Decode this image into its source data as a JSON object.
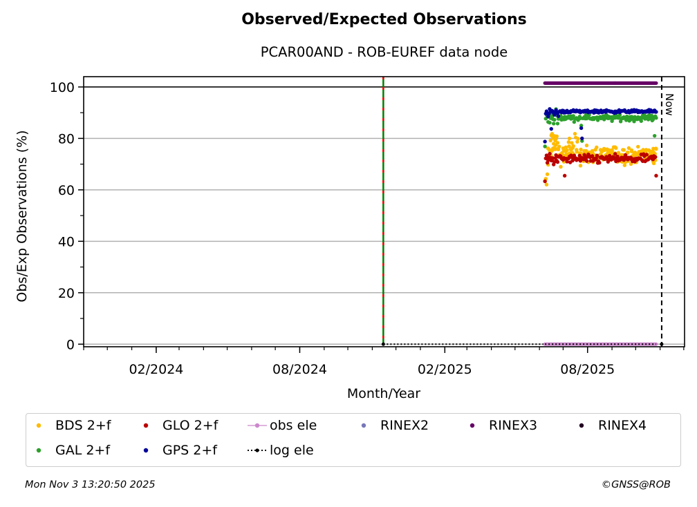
{
  "chart_data": {
    "type": "scatter",
    "title": "Observed/Expected Observations",
    "subtitle": "PCAR00AND - ROB-EUREF data node",
    "xlabel": "Month/Year",
    "ylabel": "Obs/Exp Observations (%)",
    "xlim": [
      "2023-11-01",
      "2025-12-02"
    ],
    "ylim": [
      -1,
      104
    ],
    "x_ticks": [
      {
        "date": "2024-02-01",
        "label": "02/2024"
      },
      {
        "date": "2024-08-01",
        "label": "08/2024"
      },
      {
        "date": "2025-02-01",
        "label": "02/2025"
      },
      {
        "date": "2025-08-01",
        "label": "08/2025"
      }
    ],
    "y_ticks": [
      0,
      20,
      40,
      60,
      80,
      100
    ],
    "y_tick_labels": [
      "0",
      "20",
      "40",
      "60",
      "80",
      "100"
    ],
    "grid": "y",
    "reference_line_y": 100,
    "now": {
      "date": "2025-11-03",
      "label": "Now"
    },
    "event_line": {
      "date": "2024-11-15",
      "colors": [
        "#008000",
        "#ff0000"
      ]
    },
    "data_start": "2025-06-08",
    "data_end": "2025-10-27",
    "series": [
      {
        "name": "BDS 2+f",
        "color": "#ffbb00",
        "typical": 73,
        "early_values": [
          63,
          64,
          62,
          66,
          70,
          73,
          75,
          79,
          81,
          82,
          80,
          78,
          81,
          79,
          80,
          81,
          78,
          76,
          74
        ]
      },
      {
        "name": "GLO 2+f",
        "color": "#bb0000",
        "typical": 72,
        "early_values": [
          63,
          72,
          73,
          71,
          72,
          73,
          74,
          72,
          71,
          72,
          73,
          70,
          71,
          72,
          73,
          72,
          71,
          72,
          73
        ]
      },
      {
        "name": "GAL 2+f",
        "color": "#2ca02c",
        "typical": 88,
        "early_values": [
          77,
          88,
          89,
          88,
          87,
          88,
          86,
          88,
          89,
          88,
          87,
          86,
          88,
          89,
          92,
          88,
          87,
          88,
          88
        ]
      },
      {
        "name": "GPS 2+f",
        "color": "#000099",
        "typical": 90.5,
        "early_values": [
          79,
          90,
          91,
          90,
          89,
          90,
          91,
          90,
          83,
          90,
          91,
          90,
          89,
          90,
          91,
          90,
          90,
          89,
          90
        ]
      },
      {
        "name": "obs ele",
        "color": "#cc88cc",
        "typical": 0
      },
      {
        "name": "RINEX2",
        "color": "#7777bb",
        "typical": null
      },
      {
        "name": "RINEX3",
        "color": "#660066",
        "typical": 101.5
      },
      {
        "name": "RINEX4",
        "color": "#220022",
        "typical": null
      },
      {
        "name": "log ele",
        "color": "#000000",
        "typical": 0
      }
    ]
  },
  "legend": {
    "items": [
      {
        "label": "BDS 2+f",
        "color": "#ffbb00",
        "style": "dot"
      },
      {
        "label": "GLO 2+f",
        "color": "#bb0000",
        "style": "dot"
      },
      {
        "label": "obs ele",
        "color": "#cc88cc",
        "style": "line-dot"
      },
      {
        "label": "RINEX2",
        "color": "#7777bb",
        "style": "dot"
      },
      {
        "label": "RINEX3",
        "color": "#660066",
        "style": "dot"
      },
      {
        "label": "RINEX4",
        "color": "#220022",
        "style": "dot"
      },
      {
        "label": "GAL 2+f",
        "color": "#2ca02c",
        "style": "dot"
      },
      {
        "label": "GPS 2+f",
        "color": "#000099",
        "style": "dot"
      },
      {
        "label": "log ele",
        "color": "#000000",
        "style": "dotted-dot"
      }
    ]
  },
  "footer": {
    "timestamp": "Mon Nov  3 13:20:50 2025",
    "copyright": "©GNSS@ROB"
  }
}
